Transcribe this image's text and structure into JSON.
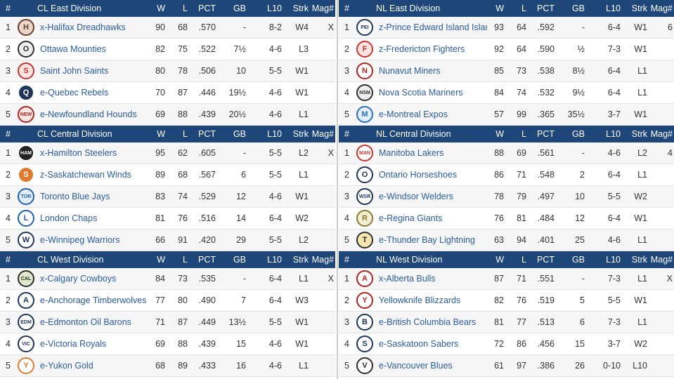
{
  "columns": [
    "#",
    "W",
    "L",
    "PCT",
    "GB",
    "L10",
    "Strk",
    "Mag#"
  ],
  "divisions": [
    {
      "name": "CL East Division",
      "teams": [
        {
          "rank": "1",
          "name": "x-Halifax Dreadhawks",
          "w": "90",
          "l": "68",
          "pct": ".570",
          "gb": "-",
          "l10": "8-2",
          "strk": "W4",
          "mag": "X",
          "logo_text": "H",
          "logo_color": "#6b3a2a",
          "logo_bg": "#e9d8c8"
        },
        {
          "rank": "2",
          "name": "Ottawa Mounties",
          "w": "82",
          "l": "75",
          "pct": ".522",
          "gb": "7½",
          "l10": "4-6",
          "strk": "L3",
          "mag": "",
          "logo_text": "O",
          "logo_color": "#2d2d2d",
          "logo_bg": "#eeeeee"
        },
        {
          "rank": "3",
          "name": "Saint John Saints",
          "w": "80",
          "l": "78",
          "pct": ".506",
          "gb": "10",
          "l10": "5-5",
          "strk": "W1",
          "mag": "",
          "logo_text": "S",
          "logo_color": "#c8342d",
          "logo_bg": "#fbe3e1"
        },
        {
          "rank": "4",
          "name": "e-Quebec Rebels",
          "w": "70",
          "l": "87",
          "pct": ".446",
          "gb": "19½",
          "l10": "4-6",
          "strk": "W1",
          "mag": "",
          "logo_text": "Q",
          "logo_color": "#ffffff",
          "logo_bg": "#1e3558"
        },
        {
          "rank": "5",
          "name": "e-Newfoundland Hounds",
          "w": "69",
          "l": "88",
          "pct": ".439",
          "gb": "20½",
          "l10": "4-6",
          "strk": "L1",
          "mag": "",
          "logo_text": "NEW",
          "logo_color": "#b22222",
          "logo_bg": "#f6e7e1"
        }
      ]
    },
    {
      "name": "NL East Division",
      "teams": [
        {
          "rank": "1",
          "name": "z-Prince Edward Island Islar",
          "w": "93",
          "l": "64",
          "pct": ".592",
          "gb": "-",
          "l10": "6-4",
          "strk": "W1",
          "mag": "6",
          "logo_text": "PEI",
          "logo_color": "#1e3558",
          "logo_bg": "#ffffff"
        },
        {
          "rank": "2",
          "name": "z-Fredericton Fighters",
          "w": "92",
          "l": "64",
          "pct": ".590",
          "gb": "½",
          "l10": "7-3",
          "strk": "W1",
          "mag": "",
          "logo_text": "F",
          "logo_color": "#c8342d",
          "logo_bg": "#fbe3e1"
        },
        {
          "rank": "3",
          "name": "Nunavut Miners",
          "w": "85",
          "l": "73",
          "pct": ".538",
          "gb": "8½",
          "l10": "6-4",
          "strk": "L1",
          "mag": "",
          "logo_text": "N",
          "logo_color": "#b22222",
          "logo_bg": "#ffffff"
        },
        {
          "rank": "4",
          "name": "Nova Scotia Mariners",
          "w": "84",
          "l": "74",
          "pct": ".532",
          "gb": "9½",
          "l10": "6-4",
          "strk": "L1",
          "mag": "",
          "logo_text": "NSM",
          "logo_color": "#2d2d2d",
          "logo_bg": "#eeeeee"
        },
        {
          "rank": "5",
          "name": "e-Montreal Expos",
          "w": "57",
          "l": "99",
          "pct": ".365",
          "gb": "35½",
          "l10": "3-7",
          "strk": "W1",
          "mag": "",
          "logo_text": "M",
          "logo_color": "#2a6fbf",
          "logo_bg": "#e3eefb"
        }
      ]
    },
    {
      "name": "CL Central Division",
      "teams": [
        {
          "rank": "1",
          "name": "x-Hamilton Steelers",
          "w": "95",
          "l": "62",
          "pct": ".605",
          "gb": "-",
          "l10": "5-5",
          "strk": "L2",
          "mag": "X",
          "logo_text": "HAM",
          "logo_color": "#ffffff",
          "logo_bg": "#222222"
        },
        {
          "rank": "2",
          "name": "z-Saskatchewan Winds",
          "w": "89",
          "l": "68",
          "pct": ".567",
          "gb": "6",
          "l10": "5-5",
          "strk": "L1",
          "mag": "",
          "logo_text": "S",
          "logo_color": "#ffffff",
          "logo_bg": "#e07a2f"
        },
        {
          "rank": "3",
          "name": "Toronto Blue Jays",
          "w": "83",
          "l": "74",
          "pct": ".529",
          "gb": "12",
          "l10": "4-6",
          "strk": "W1",
          "mag": "",
          "logo_text": "TOR",
          "logo_color": "#1e5fb0",
          "logo_bg": "#e3eefb"
        },
        {
          "rank": "4",
          "name": "London Chaps",
          "w": "81",
          "l": "76",
          "pct": ".516",
          "gb": "14",
          "l10": "6-4",
          "strk": "W2",
          "mag": "",
          "logo_text": "L",
          "logo_color": "#1e5fb0",
          "logo_bg": "#ffffff"
        },
        {
          "rank": "5",
          "name": "e-Winnipeg Warriors",
          "w": "66",
          "l": "91",
          "pct": ".420",
          "gb": "29",
          "l10": "5-5",
          "strk": "L2",
          "mag": "",
          "logo_text": "W",
          "logo_color": "#1e3558",
          "logo_bg": "#ffffff"
        }
      ]
    },
    {
      "name": "NL Central Division",
      "teams": [
        {
          "rank": "1",
          "name": "Manitoba Lakers",
          "w": "88",
          "l": "69",
          "pct": ".561",
          "gb": "-",
          "l10": "4-6",
          "strk": "L2",
          "mag": "4",
          "logo_text": "MAN",
          "logo_color": "#c8342d",
          "logo_bg": "#ffffff"
        },
        {
          "rank": "2",
          "name": "Ontario Horseshoes",
          "w": "86",
          "l": "71",
          "pct": ".548",
          "gb": "2",
          "l10": "6-4",
          "strk": "L1",
          "mag": "",
          "logo_text": "O",
          "logo_color": "#1e3558",
          "logo_bg": "#ffffff"
        },
        {
          "rank": "3",
          "name": "e-Windsor Welders",
          "w": "78",
          "l": "79",
          "pct": ".497",
          "gb": "10",
          "l10": "5-5",
          "strk": "W2",
          "mag": "",
          "logo_text": "WSR",
          "logo_color": "#1e3558",
          "logo_bg": "#ffffff"
        },
        {
          "rank": "4",
          "name": "e-Regina Giants",
          "w": "76",
          "l": "81",
          "pct": ".484",
          "gb": "12",
          "l10": "6-4",
          "strk": "W1",
          "mag": "",
          "logo_text": "R",
          "logo_color": "#8a7a2a",
          "logo_bg": "#f3efd6"
        },
        {
          "rank": "5",
          "name": "e-Thunder Bay Lightning",
          "w": "63",
          "l": "94",
          "pct": ".401",
          "gb": "25",
          "l10": "4-6",
          "strk": "L1",
          "mag": "",
          "logo_text": "T",
          "logo_color": "#2d2d2d",
          "logo_bg": "#f6e6b0"
        }
      ]
    },
    {
      "name": "CL West Division",
      "teams": [
        {
          "rank": "1",
          "name": "x-Calgary Cowboys",
          "w": "84",
          "l": "73",
          "pct": ".535",
          "gb": "-",
          "l10": "6-4",
          "strk": "L1",
          "mag": "X",
          "logo_text": "CAL",
          "logo_color": "#2d2d2d",
          "logo_bg": "#dfe8c8"
        },
        {
          "rank": "2",
          "name": "e-Anchorage Timberwolves",
          "w": "77",
          "l": "80",
          "pct": ".490",
          "gb": "7",
          "l10": "6-4",
          "strk": "W3",
          "mag": "",
          "logo_text": "A",
          "logo_color": "#1e3558",
          "logo_bg": "#ffffff"
        },
        {
          "rank": "3",
          "name": "e-Edmonton Oil Barons",
          "w": "71",
          "l": "87",
          "pct": ".449",
          "gb": "13½",
          "l10": "5-5",
          "strk": "W1",
          "mag": "",
          "logo_text": "EDM",
          "logo_color": "#1e3558",
          "logo_bg": "#ffffff"
        },
        {
          "rank": "4",
          "name": "e-Victoria Royals",
          "w": "69",
          "l": "88",
          "pct": ".439",
          "gb": "15",
          "l10": "4-6",
          "strk": "W1",
          "mag": "",
          "logo_text": "VIC",
          "logo_color": "#1e3558",
          "logo_bg": "#ffffff"
        },
        {
          "rank": "5",
          "name": "e-Yukon Gold",
          "w": "68",
          "l": "89",
          "pct": ".433",
          "gb": "16",
          "l10": "4-6",
          "strk": "L1",
          "mag": "",
          "logo_text": "Y",
          "logo_color": "#e07a2f",
          "logo_bg": "#ffffff"
        }
      ]
    },
    {
      "name": "NL West Division",
      "teams": [
        {
          "rank": "1",
          "name": "x-Alberta Bulls",
          "w": "87",
          "l": "71",
          "pct": ".551",
          "gb": "-",
          "l10": "7-3",
          "strk": "L1",
          "mag": "X",
          "logo_text": "A",
          "logo_color": "#b22222",
          "logo_bg": "#ffffff"
        },
        {
          "rank": "2",
          "name": "Yellowknife Blizzards",
          "w": "82",
          "l": "76",
          "pct": ".519",
          "gb": "5",
          "l10": "5-5",
          "strk": "W1",
          "mag": "",
          "logo_text": "Y",
          "logo_color": "#b22222",
          "logo_bg": "#ffffff"
        },
        {
          "rank": "3",
          "name": "e-British Columbia Bears",
          "w": "81",
          "l": "77",
          "pct": ".513",
          "gb": "6",
          "l10": "7-3",
          "strk": "L1",
          "mag": "",
          "logo_text": "B",
          "logo_color": "#1e3558",
          "logo_bg": "#ffffff"
        },
        {
          "rank": "4",
          "name": "e-Saskatoon Sabers",
          "w": "72",
          "l": "86",
          "pct": ".456",
          "gb": "15",
          "l10": "3-7",
          "strk": "W2",
          "mag": "",
          "logo_text": "S",
          "logo_color": "#1e3558",
          "logo_bg": "#ffffff"
        },
        {
          "rank": "5",
          "name": "e-Vancouver Blues",
          "w": "61",
          "l": "97",
          "pct": ".386",
          "gb": "26",
          "l10": "0-10",
          "strk": "L10",
          "mag": "",
          "logo_text": "V",
          "logo_color": "#2d2d2d",
          "logo_bg": "#ffffff"
        }
      ]
    }
  ]
}
